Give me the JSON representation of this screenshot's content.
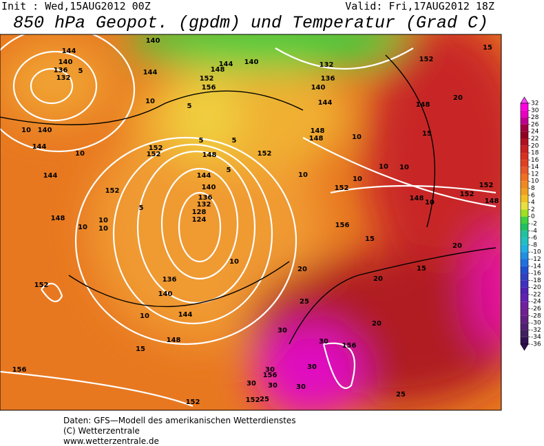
{
  "header": {
    "init": "Init : Wed,15AUG2012 00Z",
    "valid": "Valid: Fri,17AUG2012 18Z",
    "title": "850 hPa Geopot. (gpdm) und Temperatur (Grad C)"
  },
  "colorbar": {
    "ticks": [
      32,
      30,
      28,
      26,
      24,
      22,
      20,
      18,
      16,
      14,
      12,
      10,
      8,
      6,
      4,
      2,
      0,
      -2,
      -4,
      -6,
      -8,
      -10,
      -12,
      -14,
      -16,
      -18,
      -20,
      -22,
      -24,
      -26,
      -28,
      -30,
      -32,
      -34,
      -36
    ],
    "colors": [
      "#ff40ff",
      "#ff00e0",
      "#e800c0",
      "#c00090",
      "#a00040",
      "#900020",
      "#b01020",
      "#c82020",
      "#d83020",
      "#e04020",
      "#e85828",
      "#f07020",
      "#f08820",
      "#f0a020",
      "#f0c020",
      "#e8e040",
      "#a0e020",
      "#40d040",
      "#20c060",
      "#20c0a0",
      "#20c0c0",
      "#20b0e0",
      "#2090e0",
      "#2070e0",
      "#2050d0",
      "#3040c0",
      "#4030c0",
      "#5020b0",
      "#6020b0",
      "#7020a0",
      "#702090",
      "#602080",
      "#502070",
      "#402060",
      "#301050"
    ]
  },
  "contour_labels": [
    "144",
    "140",
    "136",
    "132",
    "140",
    "144",
    "148",
    "152",
    "156",
    "144",
    "140",
    "132",
    "136",
    "140",
    "144",
    "148",
    "148",
    "152",
    "148",
    "140",
    "144",
    "144",
    "148",
    "152",
    "152",
    "148",
    "152",
    "144",
    "140",
    "136",
    "132",
    "128",
    "124",
    "136",
    "140",
    "144",
    "148",
    "152",
    "152",
    "148",
    "152",
    "152",
    "148",
    "156",
    "152",
    "156",
    "152",
    "156",
    "156",
    "152",
    "5",
    "10",
    "10",
    "10",
    "5",
    "5",
    "5",
    "5",
    "10",
    "10",
    "10",
    "10",
    "10",
    "15",
    "20",
    "15",
    "10",
    "15",
    "20",
    "15",
    "20",
    "20",
    "25",
    "30",
    "30",
    "30",
    "30",
    "30",
    "30",
    "30",
    "25",
    "25",
    "20",
    "15",
    "10",
    "10",
    "10",
    "10",
    "10",
    "5"
  ],
  "footer": [
    "Daten: GFS—Modell des amerikanischen Wetterdienstes",
    "(C) Wetterzentrale",
    "www.wetterzentrale.de"
  ]
}
